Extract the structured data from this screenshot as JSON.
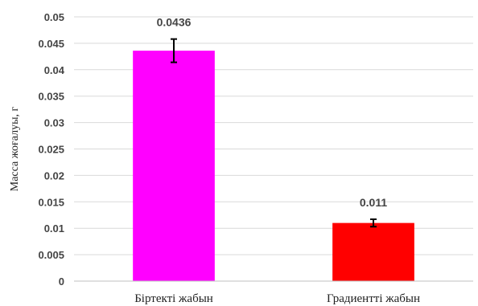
{
  "chart_data": {
    "type": "bar",
    "title": "",
    "xlabel": "",
    "ylabel": "Масса жоғалуы, г",
    "ylim": [
      0,
      0.05
    ],
    "yticks": [
      0,
      0.005,
      0.01,
      0.015,
      0.02,
      0.025,
      0.03,
      0.035,
      0.04,
      0.045,
      0.05
    ],
    "ytick_labels": [
      "0",
      "0.005",
      "0.01",
      "0.015",
      "0.02",
      "0.025",
      "0.03",
      "0.035",
      "0.04",
      "0.045",
      "0.05"
    ],
    "grid": true,
    "categories": [
      "Біртекті жабын",
      "Градиентті жабын"
    ],
    "values": [
      0.0436,
      0.011
    ],
    "errors": [
      0.0022,
      0.0007
    ],
    "data_labels": [
      "0.0436",
      "0.011"
    ],
    "colors": [
      "#ff00ff",
      "#ff0000"
    ]
  }
}
